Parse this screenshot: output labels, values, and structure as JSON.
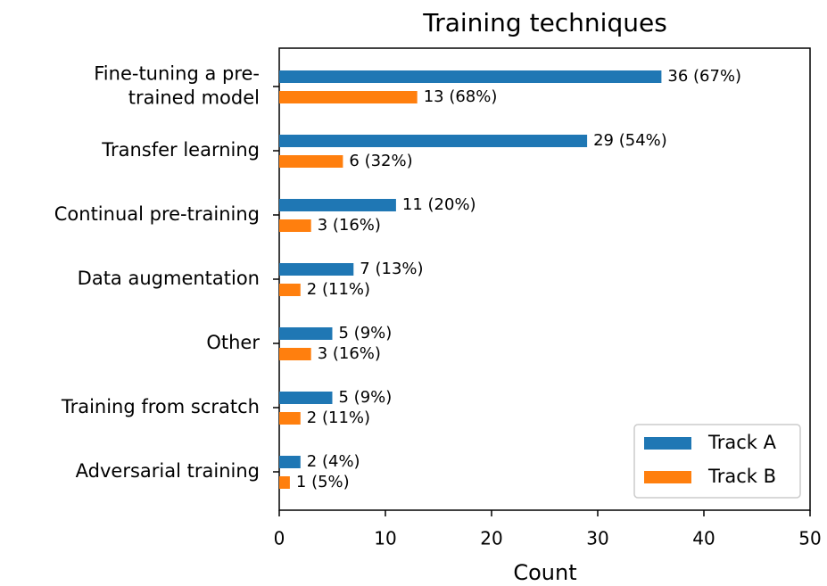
{
  "chart_data": {
    "type": "barh",
    "title": "Training techniques",
    "xlabel": "Count",
    "categories": [
      "Fine-tuning a pre-\ntrained model",
      "Transfer learning",
      "Continual pre-training",
      "Data augmentation",
      "Other",
      "Training from scratch",
      "Adversarial training"
    ],
    "series": [
      {
        "name": "Track A",
        "color": "#1f77b4",
        "values": [
          36,
          29,
          11,
          7,
          5,
          5,
          2
        ],
        "value_labels": [
          "36 (67%)",
          "29 (54%)",
          "11 (20%)",
          "7 (13%)",
          "5 (9%)",
          "5 (9%)",
          "2 (4%)"
        ]
      },
      {
        "name": "Track B",
        "color": "#ff7f0e",
        "values": [
          13,
          6,
          3,
          2,
          3,
          2,
          1
        ],
        "value_labels": [
          "13 (68%)",
          "6 (32%)",
          "3 (16%)",
          "2 (11%)",
          "3 (16%)",
          "2 (11%)",
          "1 (5%)"
        ]
      }
    ],
    "xlim": [
      0,
      50
    ],
    "xticks": [
      0,
      10,
      20,
      30,
      40,
      50
    ],
    "legend": "lower right"
  }
}
